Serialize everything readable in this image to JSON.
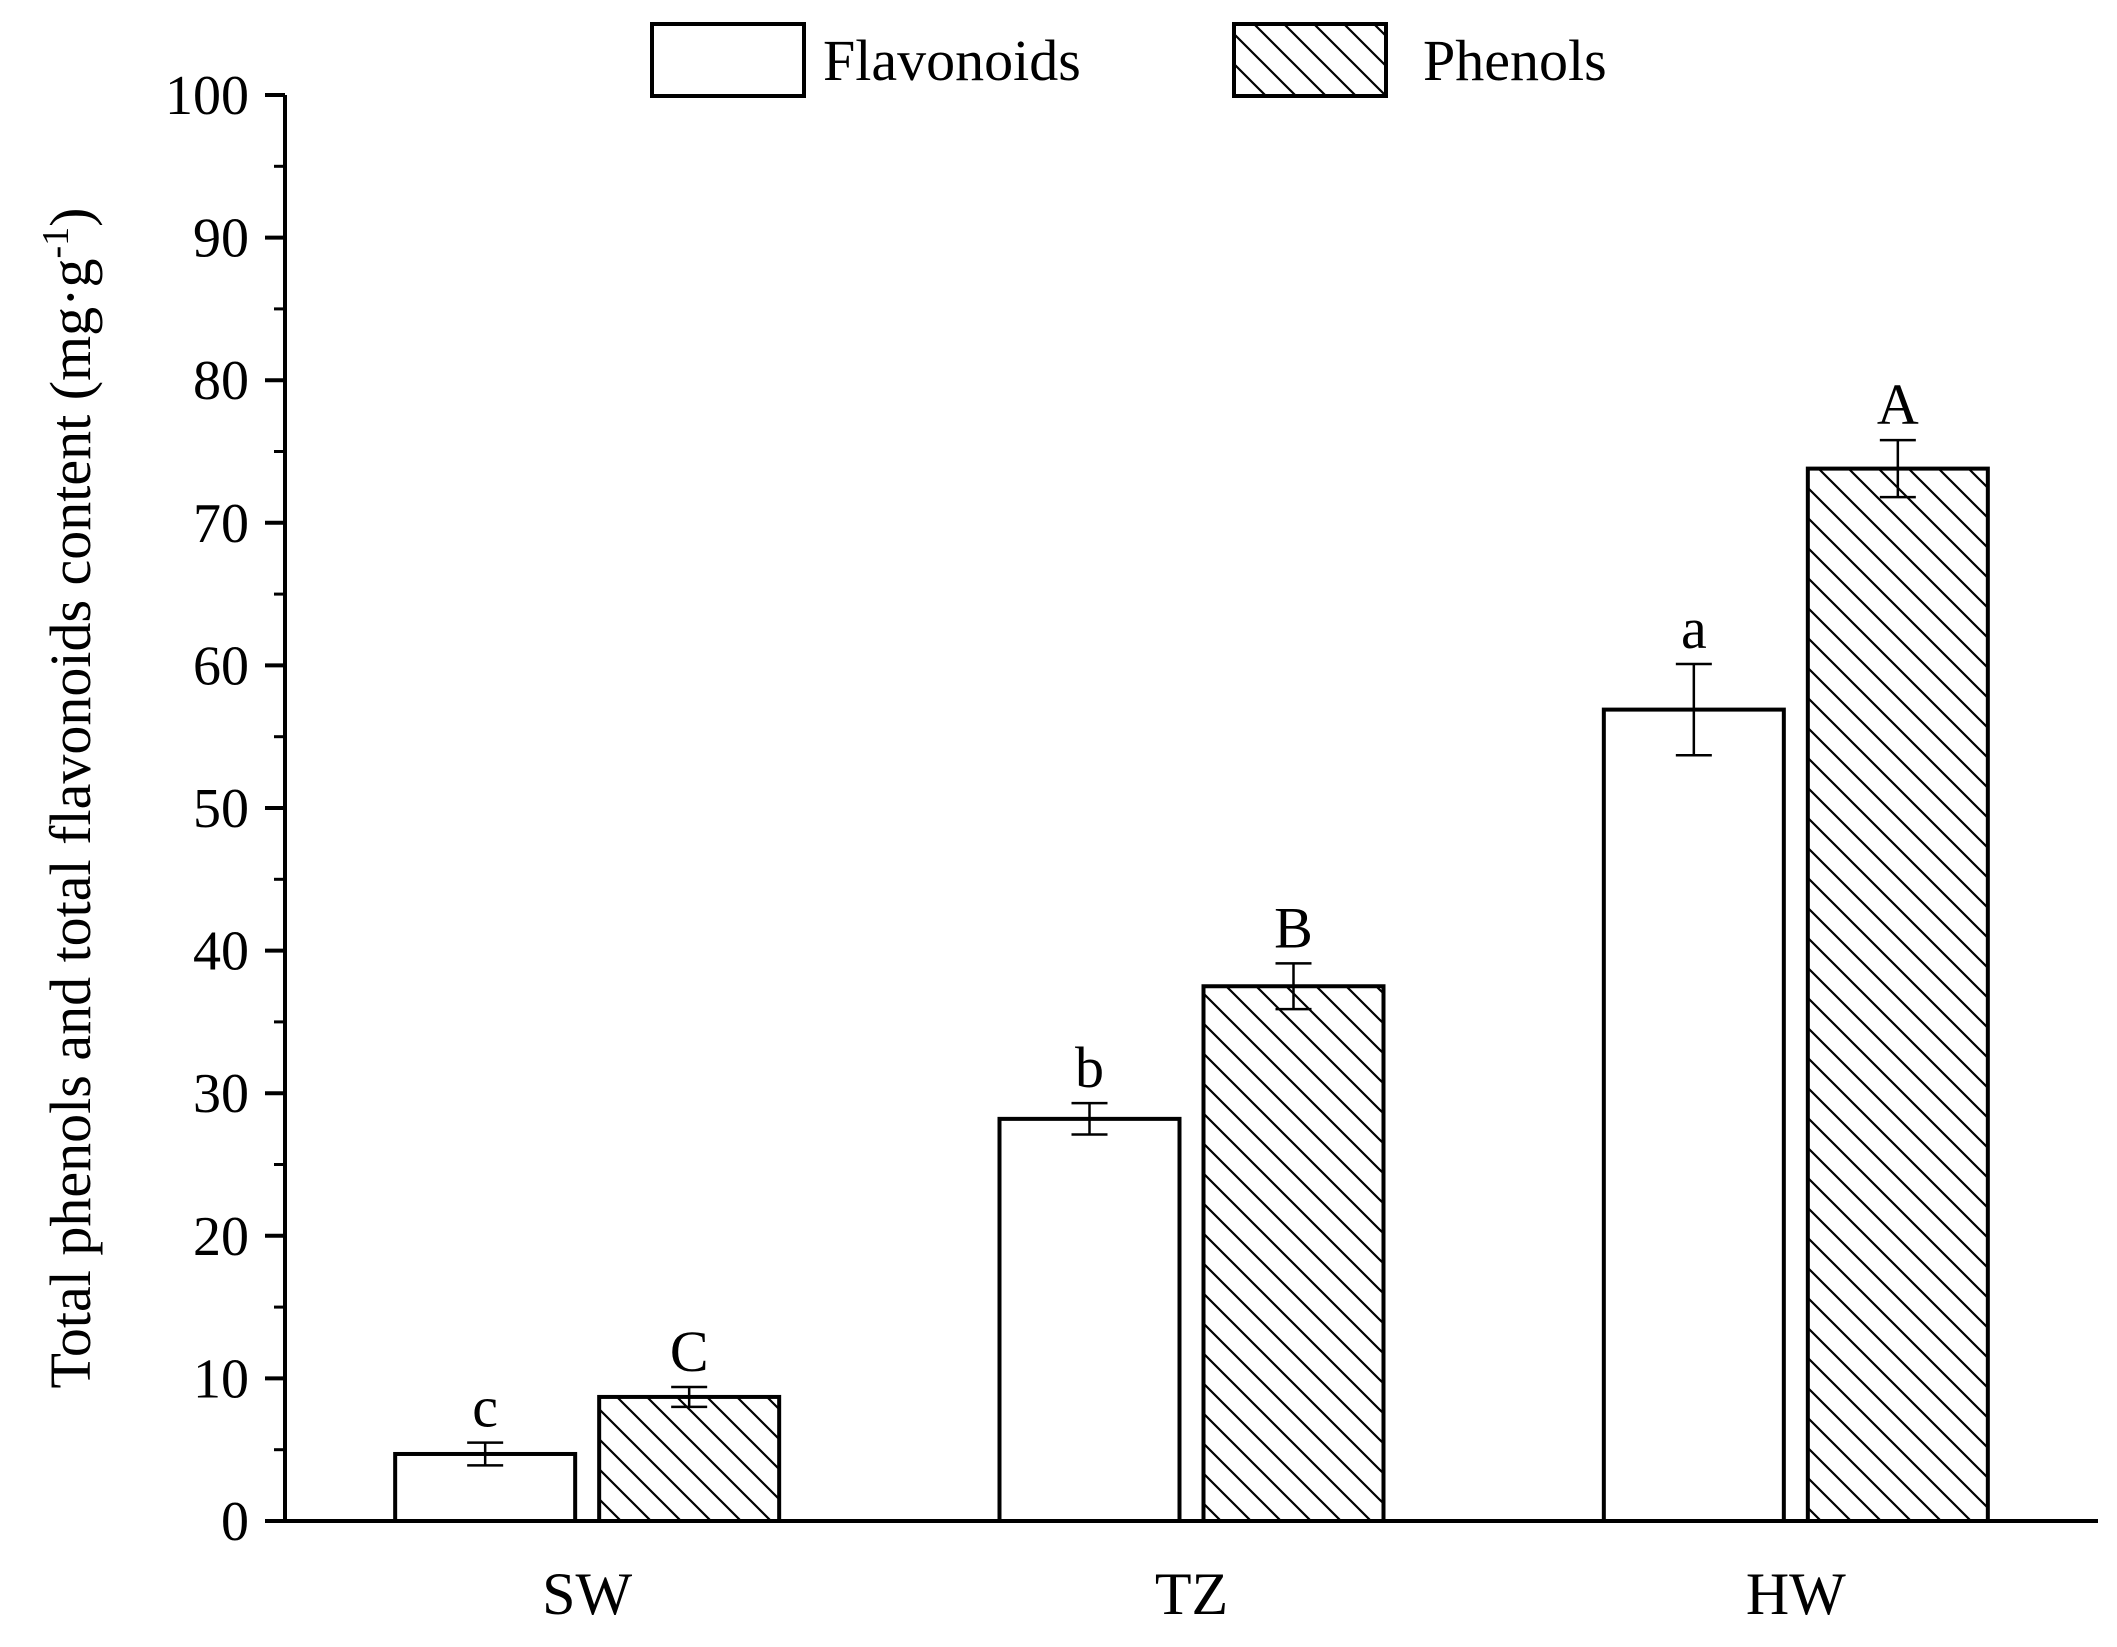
{
  "chart_data": {
    "type": "bar",
    "categories": [
      "SW",
      "TZ",
      "HW"
    ],
    "series": [
      {
        "name": "Flavonoids",
        "values": [
          4.7,
          28.2,
          56.9
        ],
        "errors": [
          0.8,
          1.1,
          3.2
        ],
        "letters": [
          "c",
          "b",
          "a"
        ],
        "fill": "#ffffff",
        "pattern": "none"
      },
      {
        "name": "Phenols",
        "values": [
          8.7,
          37.5,
          73.8
        ],
        "errors": [
          0.7,
          1.6,
          2.0
        ],
        "letters": [
          "C",
          "B",
          "A"
        ],
        "fill": "#ffffff",
        "pattern": "diagonal-hatch"
      }
    ],
    "ylabel": "Total phenols and total flavonoids content (mg·g",
    "ylabel_unit_exponent": "-1",
    "ylabel_close": ")",
    "ylim": [
      0,
      100
    ],
    "yticks": [
      0,
      10,
      20,
      30,
      40,
      50,
      60,
      70,
      80,
      90,
      100
    ],
    "xlabel": "",
    "grid": false,
    "legend_position": "top-center",
    "colors": {
      "stroke": "#000000",
      "background": "#ffffff"
    }
  }
}
